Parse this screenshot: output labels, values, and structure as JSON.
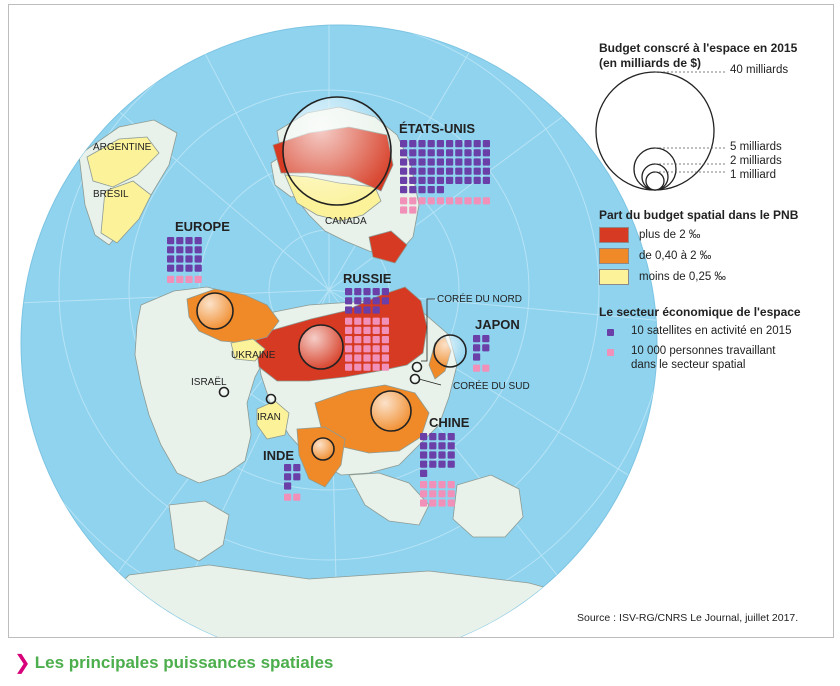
{
  "title": "Les principales puissances spatiales",
  "source": "Source : ISV-RG/CNRS Le Journal, juillet 2017.",
  "colors": {
    "ocean": "#8fd3ef",
    "land": "#e8f2ea",
    "high": "#d63a22",
    "medium": "#f08a28",
    "low": "#fbf29a",
    "satellite": "#6a3fa8",
    "personnel": "#f191b9",
    "caption": "#4cae4c",
    "chevron": "#d8007a"
  },
  "legend": {
    "budget": {
      "title_line1": "Budget conscré à l'espace en 2015",
      "title_line2": "(en milliards de $)",
      "circles": [
        {
          "value": 40,
          "label": "40 milliards"
        },
        {
          "value": 5,
          "label": "5 milliards"
        },
        {
          "value": 2,
          "label": "2 milliards"
        },
        {
          "value": 1,
          "label": "1 milliard"
        }
      ]
    },
    "pnb": {
      "title": "Part du budget spatial dans le PNB",
      "items": [
        {
          "key": "high",
          "label": "plus de 2 ‰"
        },
        {
          "key": "medium",
          "label": "de 0,40 à 2 ‰"
        },
        {
          "key": "low",
          "label": "moins de 0,25 ‰"
        }
      ]
    },
    "sector": {
      "title": "Le secteur économique de l'espace",
      "satellites": "10 satellites en activité en 2015",
      "personnel_line1": "10 000 personnes travaillant",
      "personnel_line2": "dans le secteur spatial"
    }
  },
  "countries": [
    {
      "id": "usa",
      "label": "ÉTATS-UNIS",
      "pnb": "high",
      "satellites_units": 55,
      "personnel_units": 12
    },
    {
      "id": "russia",
      "label": "RUSSIE",
      "pnb": "high",
      "satellites_units": 14,
      "personnel_units": 30
    },
    {
      "id": "europe",
      "label": "EUROPE",
      "pnb": "medium",
      "satellites_units": 16,
      "personnel_units": 4
    },
    {
      "id": "china",
      "label": "CHINE",
      "pnb": "medium",
      "satellites_units": 17,
      "personnel_units": 12
    },
    {
      "id": "japan",
      "label": "JAPON",
      "pnb": "medium",
      "satellites_units": 5,
      "personnel_units": 2
    },
    {
      "id": "india",
      "label": "INDE",
      "pnb": "medium",
      "satellites_units": 5,
      "personnel_units": 2
    },
    {
      "id": "canada",
      "label": "CANADA",
      "pnb": "low"
    },
    {
      "id": "argentina",
      "label": "ARGENTINE",
      "pnb": "low"
    },
    {
      "id": "brazil",
      "label": "BRÉSIL",
      "pnb": "low"
    },
    {
      "id": "ukraine",
      "label": "UKRAINE",
      "pnb": "low"
    },
    {
      "id": "iran",
      "label": "IRAN",
      "pnb": "low"
    },
    {
      "id": "israel",
      "label": "ISRAËL"
    },
    {
      "id": "nkorea",
      "label": "CORÉE DU NORD"
    },
    {
      "id": "skorea",
      "label": "CORÉE DU SUD"
    }
  ],
  "map_icons": {
    "usa_budget": "budget-circle-icon",
    "russia_budget": "budget-circle-icon",
    "europe_budget": "budget-circle-icon",
    "china_budget": "budget-circle-icon",
    "japan_budget": "budget-circle-icon",
    "india_budget": "budget-circle-icon",
    "israel_budget": "budget-circle-icon",
    "iran_budget": "budget-circle-icon",
    "nkorea_budget": "budget-circle-icon",
    "skorea_budget": "budget-circle-icon"
  }
}
